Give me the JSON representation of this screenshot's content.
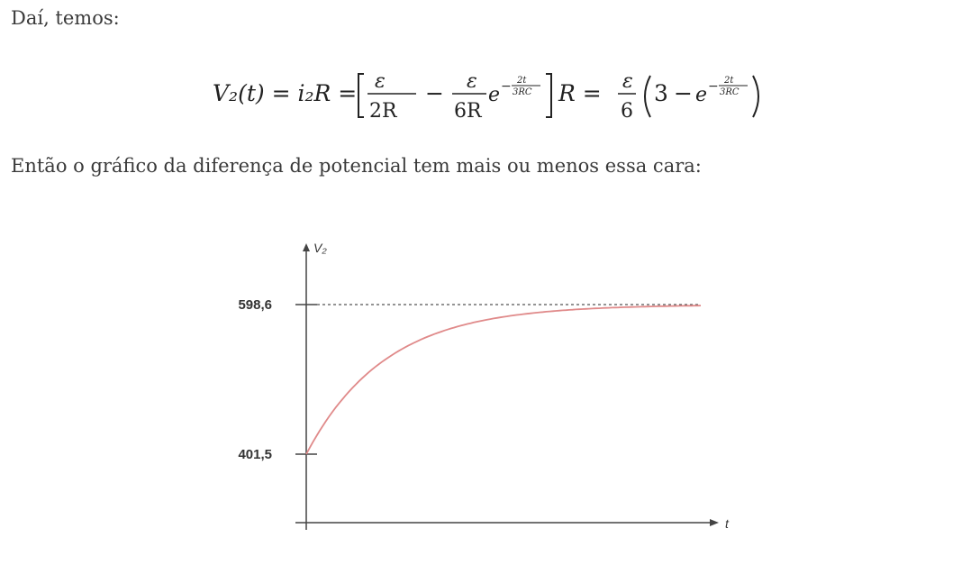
{
  "text": {
    "intro": "Daí, temos:",
    "chart_intro": "Então o gráfico da diferença de potencial tem mais ou menos essa cara:"
  },
  "equation": {
    "lhs": "V₂(t) = i₂R =",
    "frac1_num": "ε",
    "frac1_den": "2R",
    "minus": "−",
    "frac2_num": "ε",
    "frac2_den": "6R",
    "e": "e",
    "exp_sign": "−",
    "exp_num": "2t",
    "exp_den": "3RC",
    "after_bracket": "R =",
    "frac3_num": "ε",
    "frac3_den": "6",
    "three": "3",
    "minus2": "−",
    "e2": "e",
    "exp2_sign": "−",
    "exp2_num": "2t",
    "exp2_den": "3RC"
  },
  "chart_data": {
    "type": "line",
    "xlabel": "t",
    "ylabel": "V₂",
    "yticks": [
      "598,6",
      "401,5"
    ],
    "asymptote": 598.6,
    "start": 401.5,
    "series_color": "#e08a8a",
    "curve": "exponential_rise"
  }
}
